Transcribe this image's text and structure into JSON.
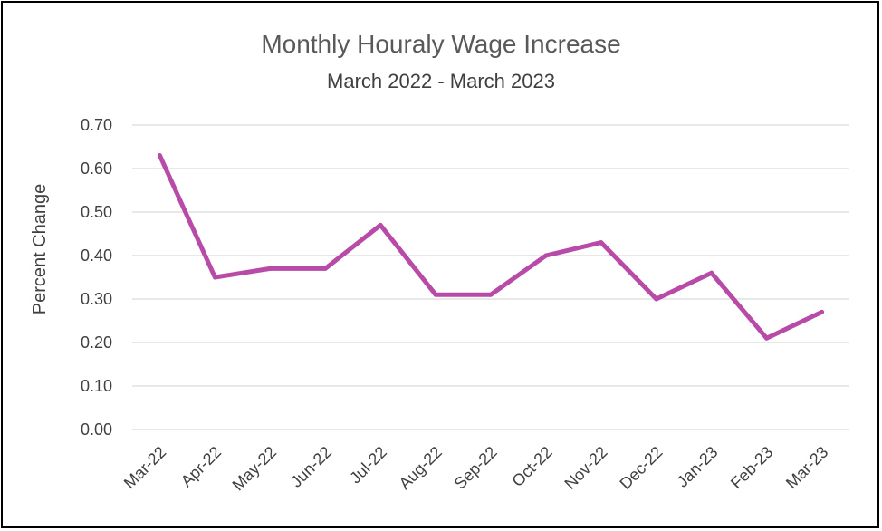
{
  "chart_data": {
    "type": "line",
    "title": "Monthly Houraly Wage Increase",
    "subtitle": "March 2022 - March 2023",
    "xlabel": "",
    "ylabel": "Percent Change",
    "categories": [
      "Mar-22",
      "Apr-22",
      "May-22",
      "Jun-22",
      "Jul-22",
      "Aug-22",
      "Sep-22",
      "Oct-22",
      "Nov-22",
      "Dec-22",
      "Jan-23",
      "Feb-23",
      "Mar-23"
    ],
    "series": [
      {
        "values": [
          0.63,
          0.35,
          0.37,
          0.37,
          0.47,
          0.31,
          0.31,
          0.4,
          0.43,
          0.3,
          0.36,
          0.21,
          0.27
        ],
        "color": "#b84aa8"
      }
    ],
    "ylim": [
      0,
      0.7
    ],
    "yticks": [
      "0.00",
      "0.10",
      "0.20",
      "0.30",
      "0.40",
      "0.50",
      "0.60",
      "0.70"
    ],
    "grid": true,
    "legend": "none"
  }
}
